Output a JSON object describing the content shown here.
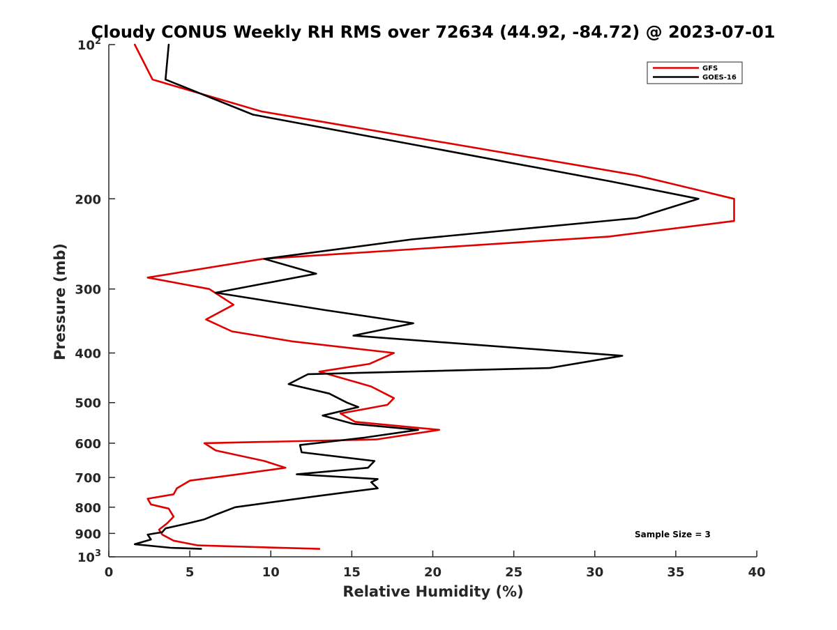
{
  "chart_data": {
    "type": "line",
    "title": "Cloudy CONUS Weekly RH RMS over 72634 (44.92, -84.72) @ 2023-07-01",
    "xlabel": "Relative Humidity (%)",
    "ylabel": "Pressure (mb)",
    "xlim": [
      0,
      40
    ],
    "ylim": [
      100,
      1000
    ],
    "y_scale": "log",
    "y_reversed": true,
    "grid": false,
    "legend_position": "top-right",
    "x_ticks": [
      0,
      5,
      10,
      15,
      20,
      25,
      30,
      35,
      40
    ],
    "y_ticks": [
      {
        "value": 100,
        "base": "10",
        "exp": "2"
      },
      {
        "value": 200,
        "label": "200"
      },
      {
        "value": 300,
        "label": "300"
      },
      {
        "value": 400,
        "label": "400"
      },
      {
        "value": 500,
        "label": "500"
      },
      {
        "value": 600,
        "label": "600"
      },
      {
        "value": 700,
        "label": "700"
      },
      {
        "value": 800,
        "label": "800"
      },
      {
        "value": 900,
        "label": "900"
      },
      {
        "value": 1000,
        "base": "10",
        "exp": "3"
      }
    ],
    "series": [
      {
        "name": "GFS",
        "color": "#e00000",
        "points": [
          [
            1.6,
            100
          ],
          [
            2.7,
            117
          ],
          [
            9.4,
            135
          ],
          [
            32.6,
            180
          ],
          [
            38.6,
            200
          ],
          [
            38.6,
            221
          ],
          [
            30.9,
            237
          ],
          [
            9.5,
            262
          ],
          [
            2.4,
            285
          ],
          [
            6.2,
            300
          ],
          [
            7.7,
            322
          ],
          [
            6.0,
            344
          ],
          [
            7.6,
            363
          ],
          [
            11.4,
            380
          ],
          [
            17.6,
            400
          ],
          [
            16.1,
            420
          ],
          [
            13.0,
            435
          ],
          [
            16.2,
            465
          ],
          [
            17.6,
            490
          ],
          [
            17.2,
            505
          ],
          [
            14.3,
            525
          ],
          [
            15.2,
            545
          ],
          [
            20.4,
            565
          ],
          [
            16.5,
            590
          ],
          [
            5.9,
            600
          ],
          [
            6.6,
            620
          ],
          [
            9.6,
            650
          ],
          [
            10.9,
            670
          ],
          [
            8.0,
            690
          ],
          [
            5.0,
            710
          ],
          [
            4.2,
            735
          ],
          [
            4.0,
            755
          ],
          [
            2.4,
            770
          ],
          [
            2.6,
            790
          ],
          [
            3.7,
            805
          ],
          [
            4.0,
            835
          ],
          [
            3.6,
            860
          ],
          [
            3.1,
            885
          ],
          [
            3.3,
            905
          ],
          [
            4.0,
            930
          ],
          [
            5.5,
            950
          ],
          [
            13.0,
            965
          ]
        ]
      },
      {
        "name": "GOES-16",
        "color": "#000000",
        "points": [
          [
            3.7,
            100
          ],
          [
            3.5,
            117
          ],
          [
            8.9,
            137
          ],
          [
            31.0,
            185
          ],
          [
            36.4,
            200
          ],
          [
            32.6,
            218
          ],
          [
            18.7,
            240
          ],
          [
            9.6,
            262
          ],
          [
            12.8,
            280
          ],
          [
            6.6,
            305
          ],
          [
            13.4,
            330
          ],
          [
            18.8,
            350
          ],
          [
            15.1,
            370
          ],
          [
            31.7,
            405
          ],
          [
            27.2,
            428
          ],
          [
            12.3,
            440
          ],
          [
            11.1,
            460
          ],
          [
            13.6,
            480
          ],
          [
            14.7,
            500
          ],
          [
            15.4,
            510
          ],
          [
            13.2,
            530
          ],
          [
            15.1,
            550
          ],
          [
            19.1,
            565
          ],
          [
            15.8,
            585
          ],
          [
            11.8,
            605
          ],
          [
            11.9,
            625
          ],
          [
            16.4,
            650
          ],
          [
            16.0,
            670
          ],
          [
            11.6,
            690
          ],
          [
            16.6,
            705
          ],
          [
            16.2,
            715
          ],
          [
            16.6,
            735
          ],
          [
            13.0,
            760
          ],
          [
            7.8,
            800
          ],
          [
            6.7,
            825
          ],
          [
            5.9,
            845
          ],
          [
            4.9,
            860
          ],
          [
            3.5,
            880
          ],
          [
            3.3,
            895
          ],
          [
            2.4,
            905
          ],
          [
            2.6,
            925
          ],
          [
            1.6,
            945
          ],
          [
            3.8,
            960
          ],
          [
            5.7,
            965
          ]
        ]
      }
    ],
    "annotation": "Sample Size = 3"
  }
}
